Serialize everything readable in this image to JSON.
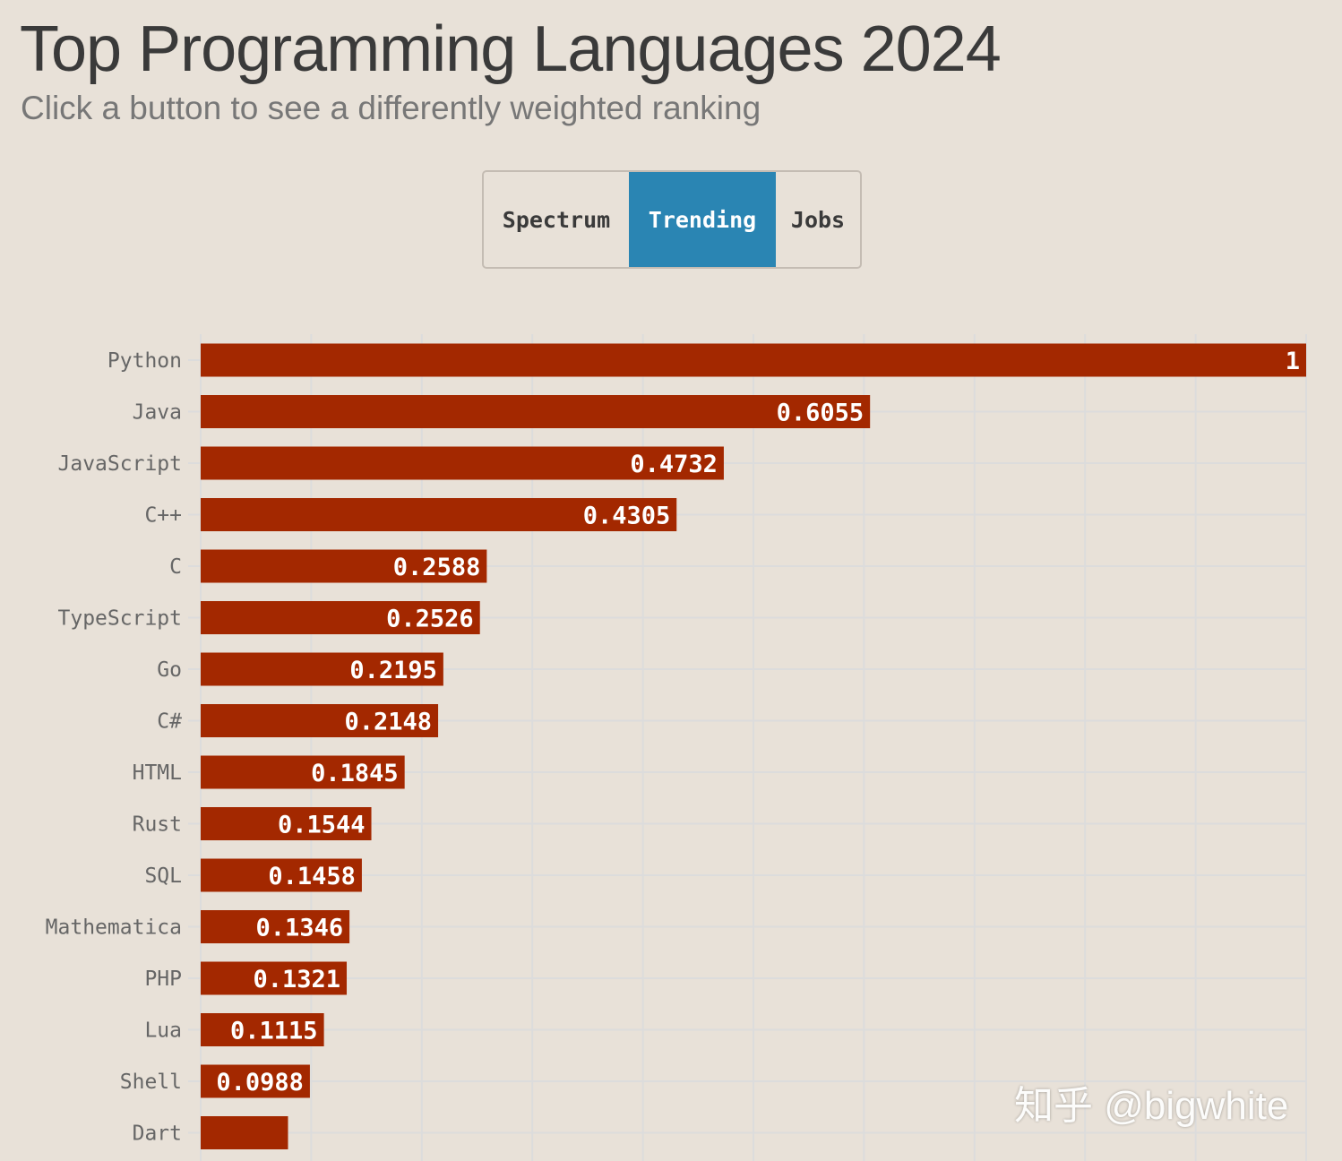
{
  "header": {
    "title": "Top Programming Languages 2024",
    "subtitle": "Click a button to see a differently weighted ranking"
  },
  "buttons": [
    {
      "label": "Spectrum",
      "active": false
    },
    {
      "label": "Trending",
      "active": true
    },
    {
      "label": "Jobs",
      "active": false
    }
  ],
  "watermark": "知乎 @bigwhite",
  "colors": {
    "bar": "#a32800",
    "active_button": "#2a85b3",
    "background": "#e8e1d8",
    "grid": "#dcdcdc"
  },
  "chart_data": {
    "type": "bar",
    "orientation": "horizontal",
    "categories": [
      "Python",
      "Java",
      "JavaScript",
      "C++",
      "C",
      "TypeScript",
      "Go",
      "C#",
      "HTML",
      "Rust",
      "SQL",
      "Mathematica",
      "PHP",
      "Lua",
      "Shell",
      "Dart"
    ],
    "values": [
      1,
      0.6055,
      0.4732,
      0.4305,
      0.2588,
      0.2526,
      0.2195,
      0.2148,
      0.1845,
      0.1544,
      0.1458,
      0.1346,
      0.1321,
      0.1115,
      0.0988,
      0.079
    ],
    "labels": [
      "1",
      "0.6055",
      "0.4732",
      "0.4305",
      "0.2588",
      "0.2526",
      "0.2195",
      "0.2148",
      "0.1845",
      "0.1544",
      "0.1458",
      "0.1346",
      "0.1321",
      "0.1115",
      "0.0988",
      ""
    ],
    "xlim": [
      0,
      1
    ],
    "grid": true
  }
}
